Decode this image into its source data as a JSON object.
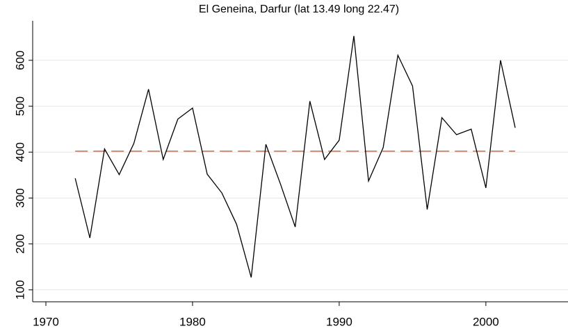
{
  "chart_data": {
    "type": "line",
    "title": "El Geneina, Darfur (lat 13.49 long 22.47)",
    "x": [
      1972,
      1973,
      1974,
      1975,
      1976,
      1977,
      1978,
      1979,
      1980,
      1981,
      1982,
      1983,
      1984,
      1985,
      1986,
      1987,
      1988,
      1989,
      1990,
      1991,
      1992,
      1993,
      1994,
      1995,
      1996,
      1997,
      1998,
      1999,
      2000,
      2001,
      2002
    ],
    "series": [
      {
        "color": "#000000",
        "values": [
          343,
          213,
          407,
          351,
          419,
          537,
          384,
          472,
          496,
          352,
          311,
          243,
          127,
          417,
          330,
          237,
          511,
          384,
          426,
          653,
          337,
          410,
          611,
          544,
          275,
          475,
          438,
          450,
          322,
          600,
          453
        ]
      }
    ],
    "reference_line": {
      "y": 402,
      "x": [
        1972,
        2002
      ],
      "color": "#c0603a"
    },
    "xlim": [
      1969.1,
      2005.6
    ],
    "xticks": [
      1970,
      1980,
      1990,
      2000
    ],
    "ylim": [
      74,
      686
    ],
    "yticks": [
      100,
      200,
      300,
      400,
      500,
      600
    ],
    "grid": true
  }
}
